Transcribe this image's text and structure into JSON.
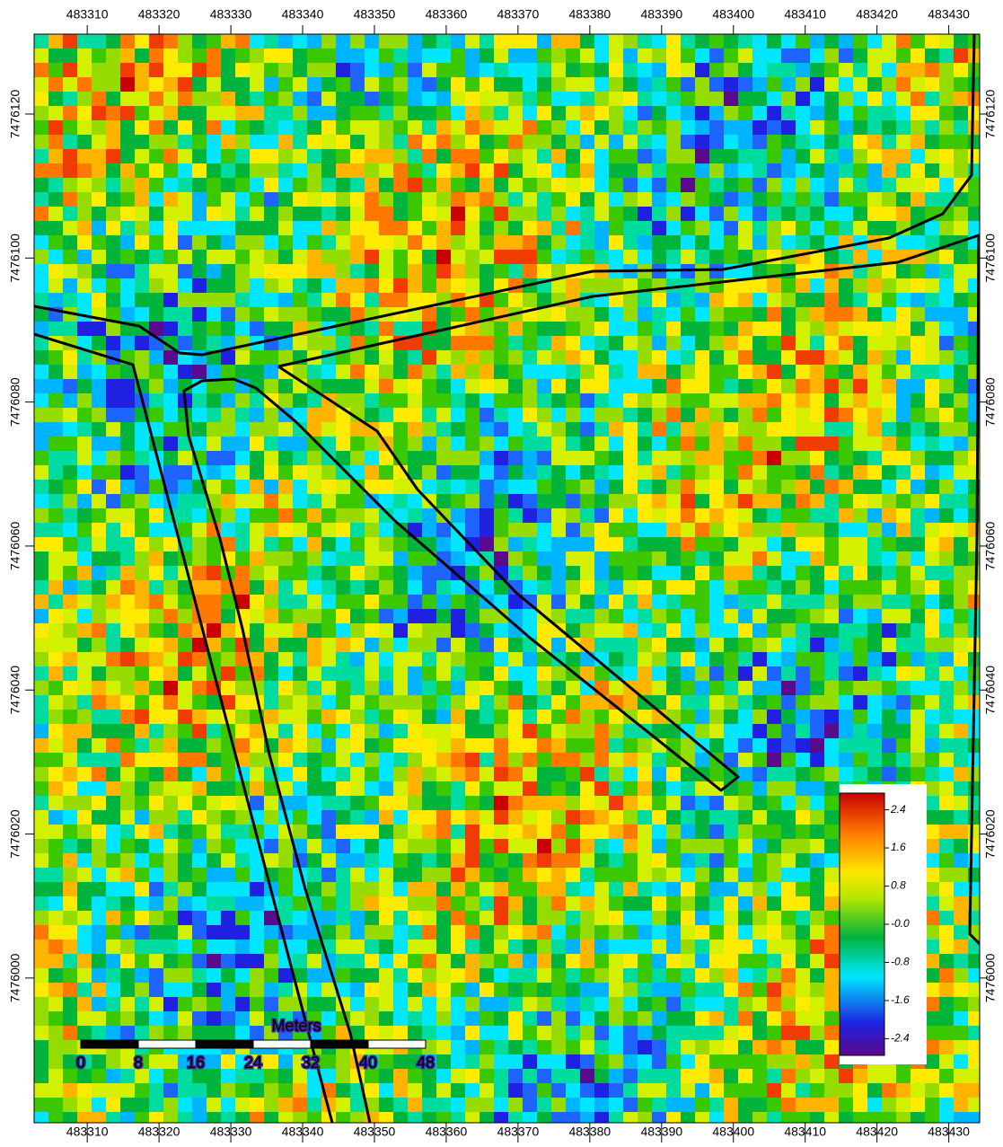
{
  "map": {
    "xlim": [
      483302.6,
      483434.3
    ],
    "ylim": [
      7475979.9,
      7476131.1
    ],
    "xticks": [
      483310,
      483320,
      483330,
      483340,
      483350,
      483360,
      483370,
      483380,
      483390,
      483400,
      483410,
      483420,
      483430
    ],
    "yticks": [
      7476000,
      7476020,
      7476040,
      7476060,
      7476080,
      7476100,
      7476120
    ],
    "colorbar": {
      "lim": [
        -2.75,
        2.75
      ],
      "ticks": [
        2.4,
        1.6,
        0.8,
        {
          "value": 0,
          "label": "-0.0"
        },
        -0.8,
        -1.6,
        -2.4
      ]
    },
    "scale_bar": {
      "title": "Meters",
      "ticks": [
        0,
        8,
        16,
        24,
        32,
        40,
        48
      ]
    }
  }
}
